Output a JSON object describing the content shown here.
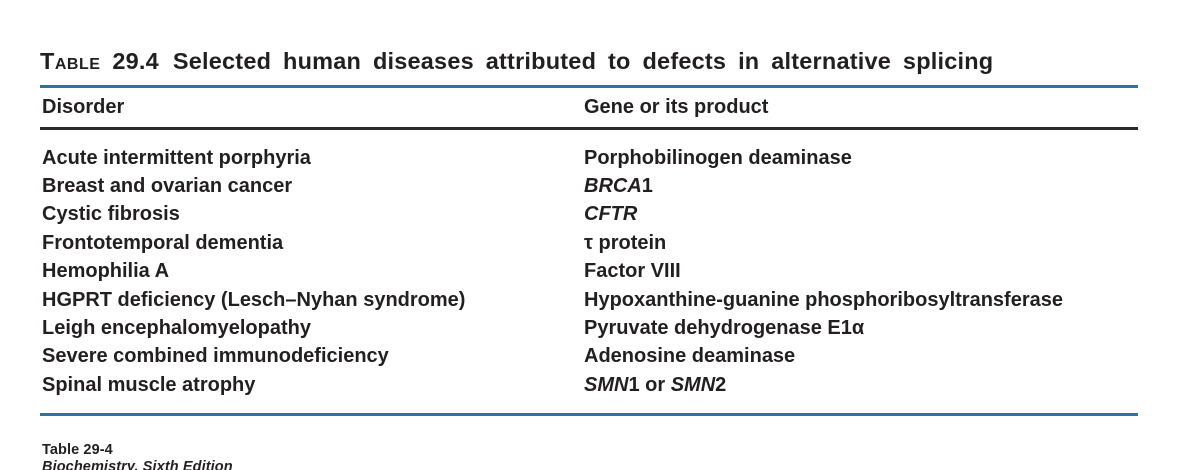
{
  "title": {
    "label": "Table",
    "number": "29.4",
    "text": "Selected human diseases attributed to defects in alternative splicing"
  },
  "columns": [
    {
      "label": "Disorder"
    },
    {
      "label": "Gene or its product"
    }
  ],
  "rows": [
    {
      "disorder": "Acute intermittent porphyria",
      "gene": [
        {
          "text": "Porphobilinogen deaminase"
        }
      ]
    },
    {
      "disorder": "Breast and ovarian cancer",
      "gene": [
        {
          "text": "BRCA",
          "italic": true
        },
        {
          "text": "1"
        }
      ]
    },
    {
      "disorder": "Cystic fibrosis",
      "gene": [
        {
          "text": "CFTR",
          "italic": true
        }
      ]
    },
    {
      "disorder": "Frontotemporal dementia",
      "gene": [
        {
          "text": "τ protein"
        }
      ]
    },
    {
      "disorder": "Hemophilia A",
      "gene": [
        {
          "text": "Factor VIII"
        }
      ]
    },
    {
      "disorder": "HGPRT deficiency (Lesch–Nyhan syndrome)",
      "gene": [
        {
          "text": "Hypoxanthine-guanine phosphoribosyltransferase"
        }
      ]
    },
    {
      "disorder": "Leigh encephalomyelopathy",
      "gene": [
        {
          "text": "Pyruvate dehydrogenase E1α"
        }
      ]
    },
    {
      "disorder": "Severe combined immunodeficiency",
      "gene": [
        {
          "text": "Adenosine deaminase"
        }
      ]
    },
    {
      "disorder": "Spinal muscle atrophy",
      "gene": [
        {
          "text": "SMN",
          "italic": true
        },
        {
          "text": "1 or "
        },
        {
          "text": "SMN",
          "italic": true
        },
        {
          "text": "2"
        }
      ]
    }
  ],
  "footer": {
    "table_ref": "Table 29-4",
    "book": "Biochemistry, Sixth Edition"
  },
  "colors": {
    "rule_blue": "#2E74A0",
    "rule_dark": "#2B2B2B",
    "text": "#231F20"
  }
}
